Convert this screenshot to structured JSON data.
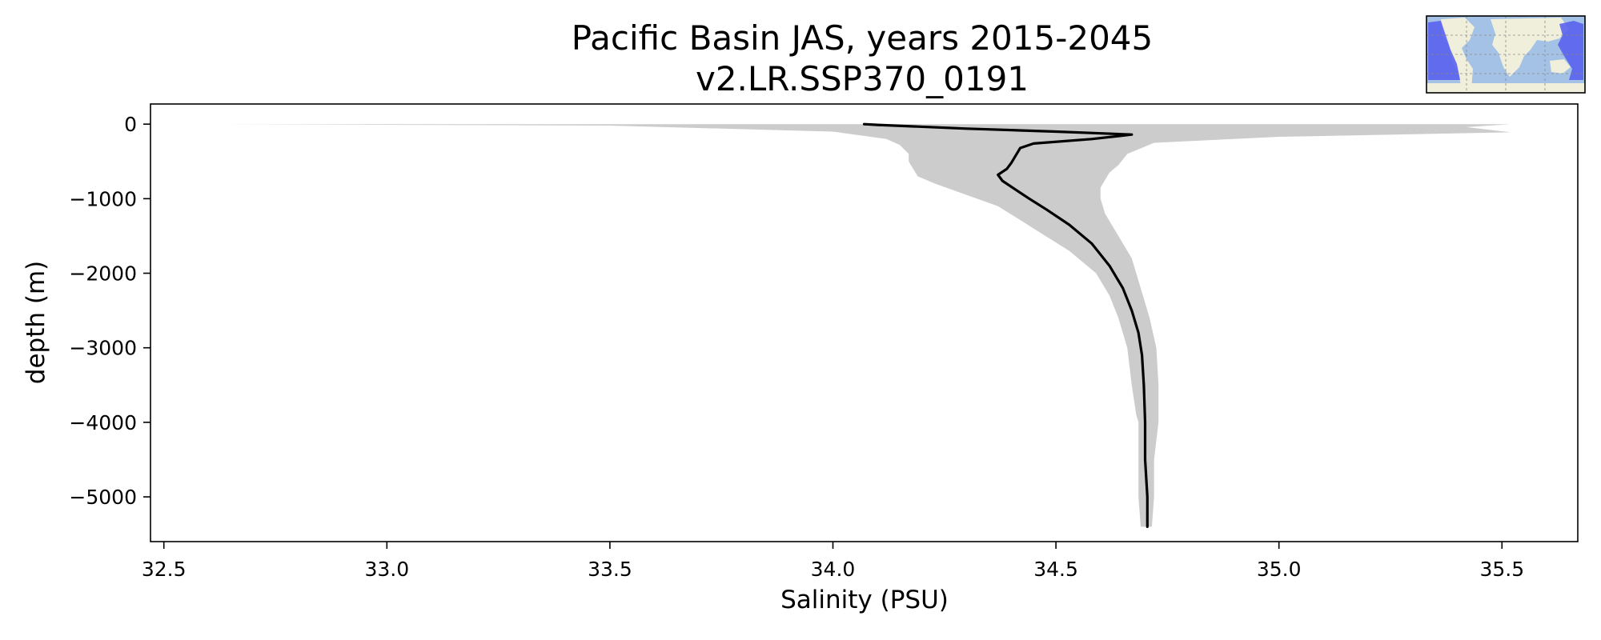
{
  "chart_data": {
    "type": "area",
    "title": "Pacific Basin JAS, years 2015-2045",
    "subtitle": "v2.LR.SSP370_0191",
    "xlabel": "Salinity (PSU)",
    "ylabel": "depth (m)",
    "xlim": [
      32.47,
      35.67
    ],
    "ylim": [
      -5600,
      270
    ],
    "xticks": [
      32.5,
      33.0,
      33.5,
      34.0,
      34.5,
      35.0,
      35.5
    ],
    "xtick_labels": [
      "32.5",
      "33.0",
      "33.5",
      "34.0",
      "34.5",
      "35.0",
      "35.5"
    ],
    "yticks": [
      0,
      -1000,
      -2000,
      -3000,
      -4000,
      -5000
    ],
    "ytick_labels": [
      "0",
      "−1000",
      "−2000",
      "−3000",
      "−4000",
      "−5000"
    ],
    "grid": false,
    "series": [
      {
        "kind": "line",
        "color": "#000000",
        "points": [
          [
            34.07,
            0
          ],
          [
            34.1,
            -10
          ],
          [
            34.3,
            -60
          ],
          [
            34.5,
            -100
          ],
          [
            34.67,
            -140
          ],
          [
            34.58,
            -200
          ],
          [
            34.45,
            -260
          ],
          [
            34.42,
            -320
          ],
          [
            34.41,
            -420
          ],
          [
            34.4,
            -520
          ],
          [
            34.39,
            -600
          ],
          [
            34.37,
            -680
          ],
          [
            34.38,
            -760
          ],
          [
            34.41,
            -880
          ],
          [
            34.44,
            -1000
          ],
          [
            34.48,
            -1150
          ],
          [
            34.53,
            -1350
          ],
          [
            34.58,
            -1600
          ],
          [
            34.62,
            -1900
          ],
          [
            34.65,
            -2200
          ],
          [
            34.67,
            -2500
          ],
          [
            34.685,
            -2800
          ],
          [
            34.693,
            -3100
          ],
          [
            34.697,
            -3500
          ],
          [
            34.7,
            -4000
          ],
          [
            34.7,
            -4500
          ],
          [
            34.705,
            -5000
          ],
          [
            34.705,
            -5400
          ]
        ]
      },
      {
        "kind": "range",
        "color": "#cccccc",
        "min": [
          [
            32.62,
            0
          ],
          [
            33.5,
            -20
          ],
          [
            34.0,
            -100
          ],
          [
            34.12,
            -200
          ],
          [
            34.15,
            -280
          ],
          [
            34.17,
            -400
          ],
          [
            34.17,
            -500
          ],
          [
            34.18,
            -600
          ],
          [
            34.19,
            -700
          ],
          [
            34.23,
            -800
          ],
          [
            34.3,
            -950
          ],
          [
            34.37,
            -1100
          ],
          [
            34.45,
            -1400
          ],
          [
            34.53,
            -1700
          ],
          [
            34.59,
            -2000
          ],
          [
            34.62,
            -2300
          ],
          [
            34.64,
            -2600
          ],
          [
            34.66,
            -3000
          ],
          [
            34.67,
            -3500
          ],
          [
            34.68,
            -3900
          ],
          [
            34.685,
            -4000
          ],
          [
            34.685,
            -5000
          ],
          [
            34.69,
            -5400
          ]
        ],
        "max": [
          [
            35.52,
            0
          ],
          [
            35.42,
            -40
          ],
          [
            35.52,
            -110
          ],
          [
            35.0,
            -170
          ],
          [
            34.72,
            -250
          ],
          [
            34.66,
            -400
          ],
          [
            34.64,
            -550
          ],
          [
            34.62,
            -650
          ],
          [
            34.61,
            -750
          ],
          [
            34.6,
            -850
          ],
          [
            34.6,
            -1000
          ],
          [
            34.61,
            -1200
          ],
          [
            34.64,
            -1500
          ],
          [
            34.67,
            -1800
          ],
          [
            34.69,
            -2200
          ],
          [
            34.71,
            -2600
          ],
          [
            34.725,
            -3000
          ],
          [
            34.73,
            -3500
          ],
          [
            34.73,
            -4000
          ],
          [
            34.72,
            -4500
          ],
          [
            34.72,
            -5000
          ],
          [
            34.715,
            -5400
          ]
        ]
      }
    ]
  },
  "inset_map": {
    "ocean_color": "#a4c1e6",
    "land_color": "#efefdb",
    "region_color": "#5a62ee"
  }
}
